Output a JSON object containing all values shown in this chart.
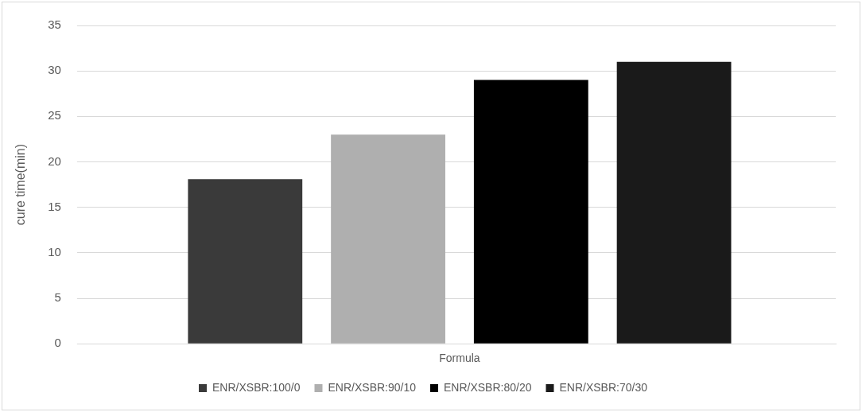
{
  "chart_data": {
    "type": "bar",
    "ylabel": "cure time(min)",
    "categories": [
      "Formula"
    ],
    "series": [
      {
        "name": "ENR/XSBR:100/0",
        "color": "#3a3a3a",
        "values": [
          18.1
        ]
      },
      {
        "name": "ENR/XSBR:90/10",
        "color": "#afafaf",
        "values": [
          23
        ]
      },
      {
        "name": "ENR/XSBR:80/20",
        "color": "#000000",
        "values": [
          29
        ]
      },
      {
        "name": "ENR/XSBR:70/30",
        "color": "#1a1a1a",
        "values": [
          31
        ]
      }
    ],
    "ylim": [
      0,
      35
    ],
    "yticks": [
      0,
      5,
      10,
      15,
      20,
      25,
      30,
      35
    ],
    "grid": "y",
    "legend": "bottom"
  }
}
